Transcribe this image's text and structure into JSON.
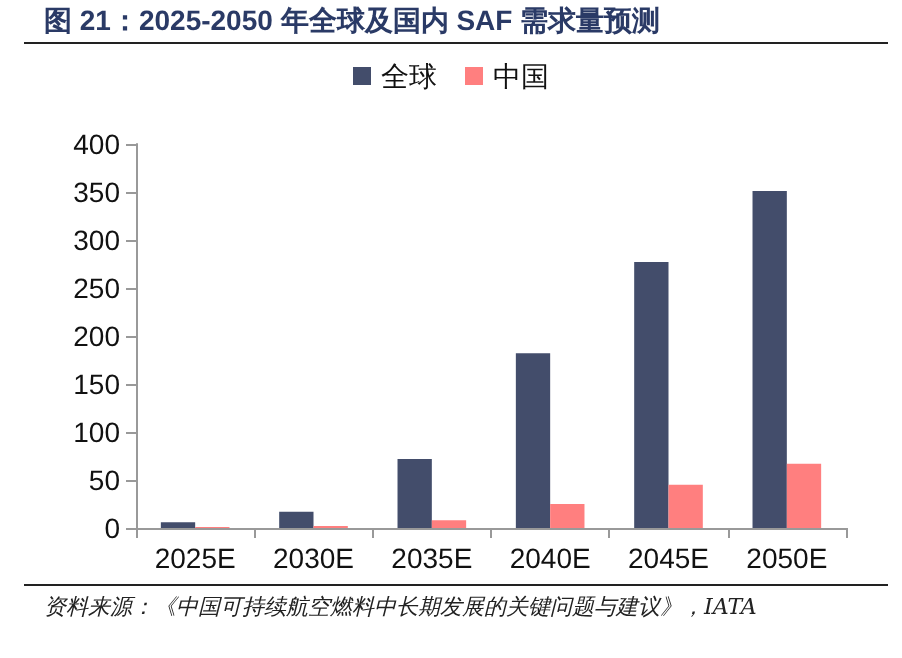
{
  "chart_data": {
    "type": "bar",
    "title": "图 21：2025-2050 年全球及国内 SAF 需求量预测",
    "categories": [
      "2025E",
      "2030E",
      "2035E",
      "2040E",
      "2045E",
      "2050E"
    ],
    "series": [
      {
        "name": "全球",
        "color": "#434d6b",
        "values": [
          6,
          17,
          72,
          182,
          277,
          351
        ]
      },
      {
        "name": "中国",
        "color": "#ff7f7f",
        "values": [
          1,
          2,
          8,
          25,
          45,
          67
        ]
      }
    ],
    "ylim": [
      0,
      400
    ],
    "yticks": [
      0,
      50,
      100,
      150,
      200,
      250,
      300,
      350,
      400
    ],
    "grid": false,
    "legend": "top",
    "annotations": [
      "资料来源：《中国可持续航空燃料中长期发展的关键问题与建议》，IATA"
    ]
  }
}
